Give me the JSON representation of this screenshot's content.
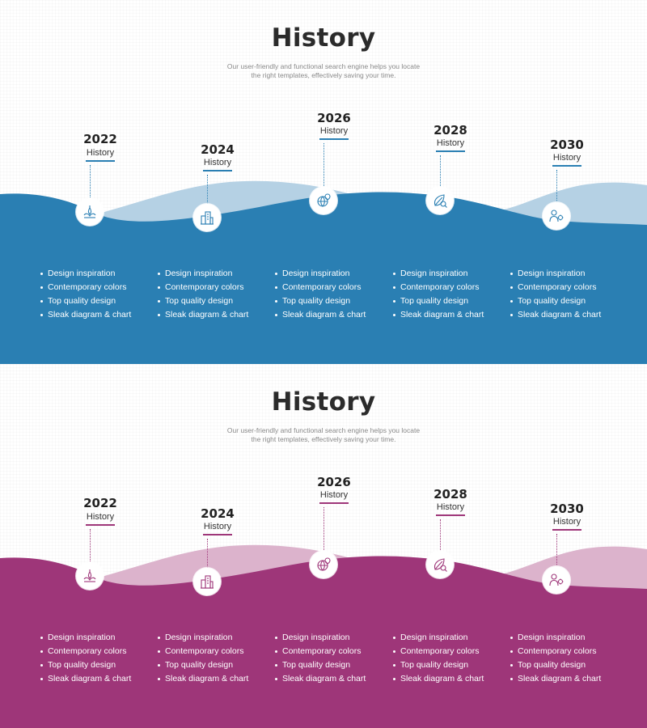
{
  "slides": [
    {
      "id": "blue",
      "title": "History",
      "subtitle_line1": "Our user-friendly and functional search engine helps you locate",
      "subtitle_line2": "the right templates, effectively saving your time.",
      "accent": "#2a7fb3",
      "light": "#b5d1e4",
      "milestones": [
        {
          "year": "2022",
          "label": "History",
          "icon": "lotus-candle-icon",
          "bullets": [
            "Design inspiration",
            "Contemporary colors",
            "Top quality design",
            "Sleak diagram & chart"
          ]
        },
        {
          "year": "2024",
          "label": "History",
          "icon": "buildings-icon",
          "bullets": [
            "Design inspiration",
            "Contemporary colors",
            "Top quality design",
            "Sleak diagram & chart"
          ]
        },
        {
          "year": "2026",
          "label": "History",
          "icon": "globe-pin-icon",
          "bullets": [
            "Design inspiration",
            "Contemporary colors",
            "Top quality design",
            "Sleak diagram & chart"
          ]
        },
        {
          "year": "2028",
          "label": "History",
          "icon": "leaf-magnifier-icon",
          "bullets": [
            "Design inspiration",
            "Contemporary colors",
            "Top quality design",
            "Sleak diagram & chart"
          ]
        },
        {
          "year": "2030",
          "label": "History",
          "icon": "person-gear-icon",
          "bullets": [
            "Design inspiration",
            "Contemporary colors",
            "Top quality design",
            "Sleak diagram & chart"
          ]
        }
      ]
    },
    {
      "id": "pink",
      "title": "History",
      "subtitle_line1": "Our user-friendly and functional search engine helps you locate",
      "subtitle_line2": "the right templates, effectively saving your time.",
      "accent": "#9e3679",
      "light": "#dcb3cc",
      "milestones": [
        {
          "year": "2022",
          "label": "History",
          "icon": "lotus-candle-icon",
          "bullets": [
            "Design inspiration",
            "Contemporary colors",
            "Top quality design",
            "Sleak diagram & chart"
          ]
        },
        {
          "year": "2024",
          "label": "History",
          "icon": "buildings-icon",
          "bullets": [
            "Design inspiration",
            "Contemporary colors",
            "Top quality design",
            "Sleak diagram & chart"
          ]
        },
        {
          "year": "2026",
          "label": "History",
          "icon": "globe-pin-icon",
          "bullets": [
            "Design inspiration",
            "Contemporary colors",
            "Top quality design",
            "Sleak diagram & chart"
          ]
        },
        {
          "year": "2028",
          "label": "History",
          "icon": "leaf-magnifier-icon",
          "bullets": [
            "Design inspiration",
            "Contemporary colors",
            "Top quality design",
            "Sleak diagram & chart"
          ]
        },
        {
          "year": "2030",
          "label": "History",
          "icon": "person-gear-icon",
          "bullets": [
            "Design inspiration",
            "Contemporary colors",
            "Top quality design",
            "Sleak diagram & chart"
          ]
        }
      ]
    }
  ]
}
